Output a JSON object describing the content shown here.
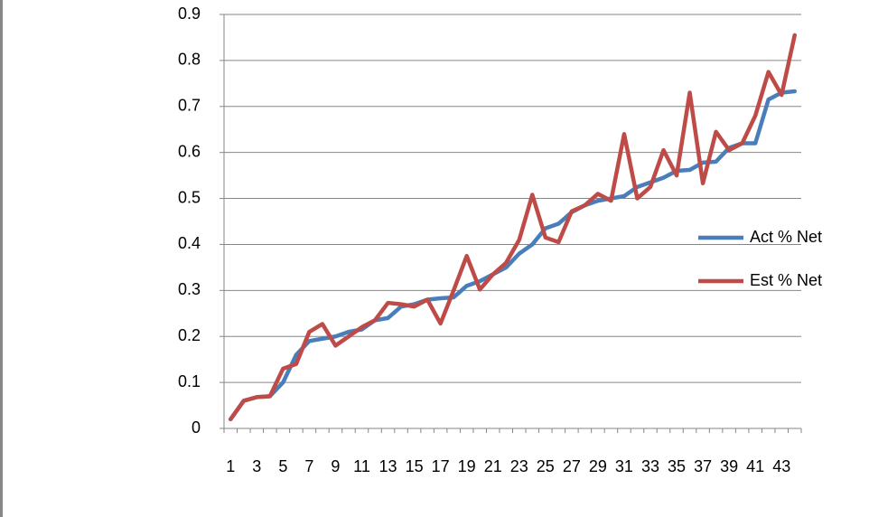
{
  "chart_data": {
    "type": "line",
    "categories": [
      "1",
      null,
      "3",
      null,
      "5",
      null,
      "7",
      null,
      "9",
      null,
      "11",
      null,
      "13",
      null,
      "15",
      null,
      "17",
      null,
      "19",
      null,
      "21",
      null,
      "23",
      null,
      "25",
      null,
      "27",
      null,
      "29",
      null,
      "31",
      null,
      "33",
      null,
      "35",
      null,
      "37",
      null,
      "39",
      null,
      "41",
      null,
      "43",
      null
    ],
    "series": [
      {
        "name": "Act % Net",
        "color": "#4a7ebb",
        "values": [
          0.02,
          0.06,
          0.068,
          0.07,
          0.1,
          0.16,
          0.19,
          0.195,
          0.2,
          0.21,
          0.215,
          0.235,
          0.24,
          0.265,
          0.27,
          0.28,
          0.283,
          0.285,
          0.31,
          0.32,
          0.335,
          0.35,
          0.38,
          0.4,
          0.435,
          0.445,
          0.47,
          0.485,
          0.495,
          0.5,
          0.505,
          0.525,
          0.535,
          0.545,
          0.56,
          0.562,
          0.578,
          0.58,
          0.61,
          0.62,
          0.62,
          0.715,
          0.73,
          0.733
        ]
      },
      {
        "name": "Est % Net",
        "color": "#be4b48",
        "values": [
          0.02,
          0.06,
          0.068,
          0.07,
          0.13,
          0.14,
          0.21,
          0.227,
          0.18,
          0.2,
          0.22,
          0.235,
          0.273,
          0.27,
          0.265,
          0.28,
          0.228,
          0.3,
          0.375,
          0.302,
          0.335,
          0.36,
          0.41,
          0.508,
          0.415,
          0.405,
          0.472,
          0.485,
          0.51,
          0.495,
          0.64,
          0.5,
          0.525,
          0.605,
          0.55,
          0.73,
          0.533,
          0.645,
          0.605,
          0.62,
          0.68,
          0.775,
          0.725,
          0.855
        ]
      }
    ],
    "ylim": [
      0,
      0.9
    ],
    "yticks": [
      0,
      0.1,
      0.2,
      0.3,
      0.4,
      0.5,
      0.6,
      0.7,
      0.8,
      0.9
    ],
    "grid": true,
    "legend": "right"
  }
}
